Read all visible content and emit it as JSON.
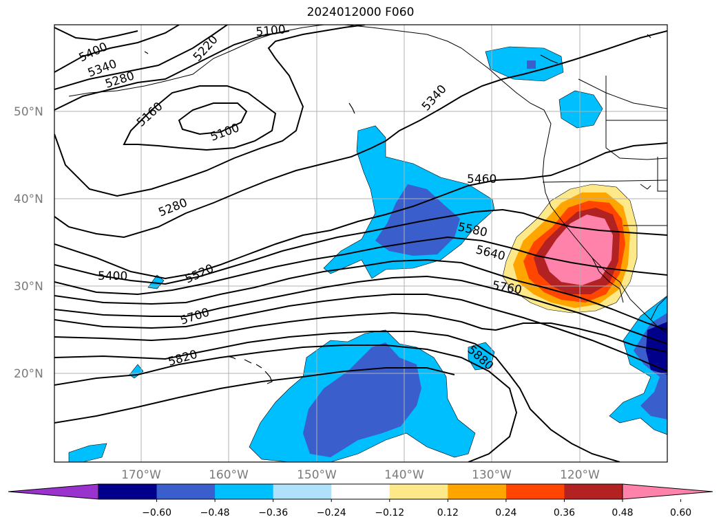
{
  "title": "2024012000 F060",
  "map": {
    "lat_labels": [
      "50°N",
      "40°N",
      "30°N",
      "20°N"
    ],
    "lon_labels": [
      "170°W",
      "160°W",
      "150°W",
      "140°W",
      "130°W",
      "120°W"
    ],
    "contour_labels": [
      "5400",
      "5340",
      "5280",
      "5220",
      "5100",
      "5160",
      "5100",
      "5280",
      "5400",
      "5520",
      "5700",
      "5820",
      "5340",
      "5460",
      "5580",
      "5640",
      "5760",
      "5880"
    ],
    "colors": {
      "contour": "#000000",
      "grid": "#b0b0b0",
      "coastline": "#000000"
    }
  },
  "colorbar": {
    "ticks": [
      "−0.60",
      "−0.48",
      "−0.36",
      "−0.24",
      "−0.12",
      "0.12",
      "0.24",
      "0.36",
      "0.48",
      "0.60"
    ],
    "colors": [
      "#9a32cd",
      "#00008b",
      "#3a5fcd",
      "#00bfff",
      "#afe1fa",
      "#ffffff",
      "#fde98a",
      "#ffa500",
      "#ff4500",
      "#b22222",
      "#ff82ab"
    ],
    "extend": "both"
  }
}
